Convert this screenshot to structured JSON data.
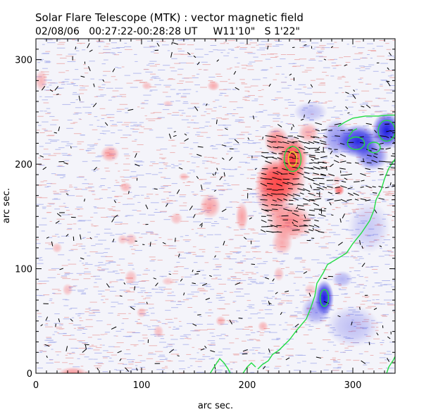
{
  "title": "Solar Flare Telescope (MTK) : vector magnetic field",
  "subtitle": "02/08/06   00:27:22-00:28:28 UT     W11'10\"   S 1'22\"",
  "chart_data": {
    "type": "heatmap",
    "title": "Solar Flare Telescope (MTK) : vector magnetic field",
    "subtitle": "02/08/06   00:27:22-00:28:28 UT     W11'10\"   S 1'22\"",
    "xlabel": "arc sec.",
    "ylabel": "arc sec.",
    "xlim": [
      0,
      340
    ],
    "ylim": [
      0,
      320
    ],
    "xticks": [
      0,
      100,
      200,
      300
    ],
    "yticks": [
      0,
      100,
      200,
      300
    ],
    "grid": false,
    "colors": {
      "positive": "#ff3030",
      "negative": "#1010e0",
      "noise_positive": "#e9a0a0",
      "noise_negative": "#a0a8e9",
      "contour_green": "#22dd44",
      "contour_yellow": "#dddd22",
      "vector": "#000000"
    },
    "regions": [
      {
        "polarity": "positive",
        "x": 243,
        "y": 205,
        "rx": 14,
        "ry": 22,
        "strength": 1.0
      },
      {
        "polarity": "positive",
        "x": 232,
        "y": 185,
        "rx": 24,
        "ry": 22,
        "strength": 0.8
      },
      {
        "polarity": "positive",
        "x": 225,
        "y": 175,
        "rx": 18,
        "ry": 28,
        "strength": 0.7
      },
      {
        "polarity": "positive",
        "x": 240,
        "y": 145,
        "rx": 22,
        "ry": 18,
        "strength": 0.6
      },
      {
        "polarity": "positive",
        "x": 228,
        "y": 222,
        "rx": 12,
        "ry": 14,
        "strength": 0.6
      },
      {
        "polarity": "positive",
        "x": 258,
        "y": 230,
        "rx": 10,
        "ry": 10,
        "strength": 0.4
      },
      {
        "polarity": "positive",
        "x": 233,
        "y": 125,
        "rx": 10,
        "ry": 12,
        "strength": 0.4
      },
      {
        "polarity": "positive",
        "x": 287,
        "y": 175,
        "rx": 5,
        "ry": 5,
        "strength": 0.7
      },
      {
        "polarity": "positive",
        "x": 70,
        "y": 210,
        "rx": 9,
        "ry": 8,
        "strength": 0.45
      },
      {
        "polarity": "positive",
        "x": 168,
        "y": 275,
        "rx": 6,
        "ry": 5,
        "strength": 0.4
      },
      {
        "polarity": "positive",
        "x": 195,
        "y": 150,
        "rx": 6,
        "ry": 14,
        "strength": 0.45
      },
      {
        "polarity": "positive",
        "x": 165,
        "y": 160,
        "rx": 10,
        "ry": 12,
        "strength": 0.45
      },
      {
        "polarity": "positive",
        "x": 85,
        "y": 178,
        "rx": 6,
        "ry": 5,
        "strength": 0.35
      },
      {
        "polarity": "positive",
        "x": 133,
        "y": 148,
        "rx": 6,
        "ry": 6,
        "strength": 0.3
      },
      {
        "polarity": "positive",
        "x": 90,
        "y": 128,
        "rx": 6,
        "ry": 6,
        "strength": 0.3
      },
      {
        "polarity": "positive",
        "x": 140,
        "y": 188,
        "rx": 5,
        "ry": 4,
        "strength": 0.3
      },
      {
        "polarity": "positive",
        "x": 82,
        "y": 128,
        "rx": 5,
        "ry": 5,
        "strength": 0.28
      },
      {
        "polarity": "positive",
        "x": 20,
        "y": 120,
        "rx": 5,
        "ry": 5,
        "strength": 0.3
      },
      {
        "polarity": "positive",
        "x": 30,
        "y": 80,
        "rx": 5,
        "ry": 6,
        "strength": 0.3
      },
      {
        "polarity": "positive",
        "x": 90,
        "y": 92,
        "rx": 6,
        "ry": 7,
        "strength": 0.3
      },
      {
        "polarity": "positive",
        "x": 125,
        "y": 88,
        "rx": 6,
        "ry": 4,
        "strength": 0.25
      },
      {
        "polarity": "positive",
        "x": 175,
        "y": 50,
        "rx": 5,
        "ry": 5,
        "strength": 0.35
      },
      {
        "polarity": "positive",
        "x": 215,
        "y": 45,
        "rx": 5,
        "ry": 5,
        "strength": 0.35
      },
      {
        "polarity": "positive",
        "x": 230,
        "y": 95,
        "rx": 5,
        "ry": 7,
        "strength": 0.3
      },
      {
        "polarity": "positive",
        "x": 100,
        "y": 58,
        "rx": 5,
        "ry": 5,
        "strength": 0.3
      },
      {
        "polarity": "positive",
        "x": 116,
        "y": 40,
        "rx": 5,
        "ry": 6,
        "strength": 0.3
      },
      {
        "polarity": "positive",
        "x": 35,
        "y": 0,
        "rx": 14,
        "ry": 6,
        "strength": 0.5
      },
      {
        "polarity": "positive",
        "x": 5,
        "y": 280,
        "rx": 6,
        "ry": 10,
        "strength": 0.35
      },
      {
        "polarity": "positive",
        "x": 105,
        "y": 275,
        "rx": 5,
        "ry": 4,
        "strength": 0.3
      },
      {
        "polarity": "positive",
        "x": 125,
        "y": 258,
        "rx": 5,
        "ry": 3,
        "strength": 0.25
      },
      {
        "polarity": "positive",
        "x": 285,
        "y": 185,
        "rx": 4,
        "ry": 4,
        "strength": 0.25
      },
      {
        "polarity": "positive",
        "x": 260,
        "y": 80,
        "rx": 6,
        "ry": 6,
        "strength": 0.25
      },
      {
        "polarity": "negative",
        "x": 305,
        "y": 222,
        "rx": 20,
        "ry": 16,
        "strength": 0.95
      },
      {
        "polarity": "negative",
        "x": 332,
        "y": 232,
        "rx": 14,
        "ry": 18,
        "strength": 1.0
      },
      {
        "polarity": "negative",
        "x": 318,
        "y": 208,
        "rx": 16,
        "ry": 14,
        "strength": 0.6
      },
      {
        "polarity": "negative",
        "x": 285,
        "y": 225,
        "rx": 14,
        "ry": 18,
        "strength": 0.45
      },
      {
        "polarity": "negative",
        "x": 273,
        "y": 72,
        "rx": 9,
        "ry": 17,
        "strength": 1.0
      },
      {
        "polarity": "negative",
        "x": 265,
        "y": 60,
        "rx": 14,
        "ry": 14,
        "strength": 0.4
      },
      {
        "polarity": "negative",
        "x": 290,
        "y": 90,
        "rx": 10,
        "ry": 8,
        "strength": 0.3
      },
      {
        "polarity": "negative",
        "x": 300,
        "y": 45,
        "rx": 25,
        "ry": 20,
        "strength": 0.25
      },
      {
        "polarity": "negative",
        "x": 315,
        "y": 140,
        "rx": 20,
        "ry": 25,
        "strength": 0.2
      },
      {
        "polarity": "negative",
        "x": 260,
        "y": 250,
        "rx": 16,
        "ry": 10,
        "strength": 0.25
      }
    ],
    "contours": [
      {
        "color": "green",
        "points": [
          [
            286,
            236
          ],
          [
            292,
            240
          ],
          [
            300,
            244
          ],
          [
            312,
            246
          ],
          [
            324,
            246
          ],
          [
            333,
            247
          ],
          [
            340,
            247
          ]
        ]
      },
      {
        "color": "green",
        "points": [
          [
            296,
            226
          ],
          [
            300,
            232
          ],
          [
            304,
            234
          ]
        ]
      },
      {
        "color": "green",
        "points": [
          [
            340,
            205
          ],
          [
            334,
            196
          ],
          [
            330,
            186
          ],
          [
            327,
            176
          ],
          [
            322,
            166
          ],
          [
            320,
            156
          ],
          [
            316,
            146
          ],
          [
            308,
            134
          ],
          [
            300,
            124
          ],
          [
            294,
            115
          ],
          [
            286,
            110
          ],
          [
            276,
            104
          ],
          [
            272,
            96
          ],
          [
            266,
            86
          ],
          [
            264,
            74
          ],
          [
            260,
            62
          ],
          [
            256,
            52
          ],
          [
            246,
            40
          ],
          [
            240,
            32
          ],
          [
            230,
            22
          ],
          [
            224,
            18
          ],
          [
            220,
            12
          ],
          [
            214,
            8
          ],
          [
            210,
            4
          ]
        ]
      },
      {
        "color": "green",
        "points": [
          [
            165,
            0
          ],
          [
            170,
            8
          ],
          [
            174,
            14
          ],
          [
            178,
            10
          ],
          [
            182,
            4
          ],
          [
            184,
            0
          ]
        ]
      },
      {
        "color": "green",
        "points": [
          [
            196,
            0
          ],
          [
            200,
            6
          ],
          [
            204,
            10
          ],
          [
            208,
            6
          ]
        ]
      },
      {
        "color": "green",
        "points": [
          [
            332,
            0
          ],
          [
            334,
            6
          ],
          [
            338,
            12
          ],
          [
            340,
            16
          ]
        ]
      },
      {
        "color": "green",
        "closed": true,
        "center": [
          243,
          205
        ],
        "rx": 8,
        "ry": 12
      },
      {
        "color": "yellow",
        "closed": true,
        "center": [
          243,
          205
        ],
        "rx": 4,
        "ry": 7
      },
      {
        "color": "green",
        "closed": true,
        "center": [
          303,
          220
        ],
        "rx": 8,
        "ry": 6
      },
      {
        "color": "green",
        "closed": true,
        "center": [
          332,
          232
        ],
        "rx": 8,
        "ry": 10
      },
      {
        "color": "green",
        "closed": true,
        "center": [
          320,
          216
        ],
        "rx": 6,
        "ry": 5
      },
      {
        "color": "green",
        "closed": true,
        "center": [
          273,
          72
        ],
        "rx": 4,
        "ry": 8
      }
    ],
    "vector_field": {
      "strong_region": {
        "x_range": [
          215,
          270
        ],
        "y_range": [
          135,
          225
        ],
        "azimuth_deg": 170
      },
      "moderate_region": {
        "x_range": [
          260,
          340
        ],
        "y_range": [
          165,
          240
        ],
        "azimuth_deg": 175
      }
    }
  }
}
